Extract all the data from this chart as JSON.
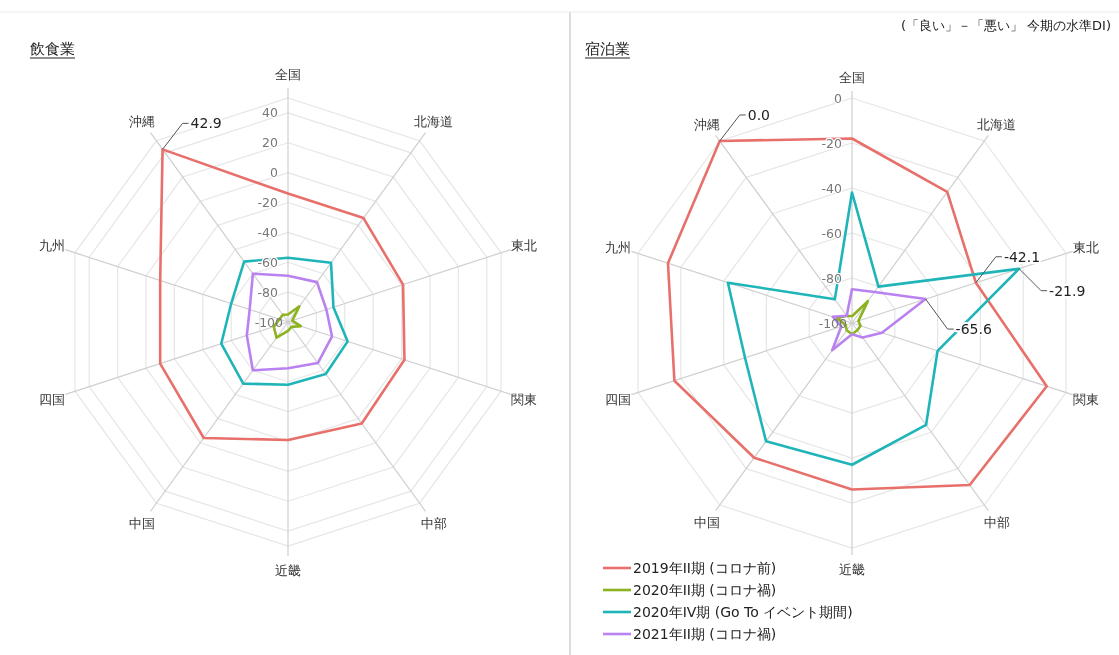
{
  "chart_data": [
    {
      "type": "radar",
      "title": "飲食業",
      "categories": [
        "全国",
        "北海道",
        "東北",
        "関東",
        "中部",
        "近畿",
        "中国",
        "四国",
        "九州",
        "沖縄"
      ],
      "ylim": [
        -100,
        50
      ],
      "yticks": [
        -100,
        -80,
        -60,
        -40,
        -20,
        0,
        20,
        40
      ],
      "grid": true,
      "series": [
        {
          "color": "#e8706b",
          "values": [
            -14,
            -14,
            -19,
            -18,
            -16,
            -21,
            -4,
            -10,
            -10,
            42.9
          ],
          "value_labels": [
            null,
            null,
            null,
            null,
            null,
            null,
            null,
            null,
            null,
            "42.9"
          ]
        },
        {
          "color": "#8cb31f",
          "values": [
            -95,
            -87,
            -97,
            -91,
            -96,
            -94,
            -87,
            -90,
            -94,
            -94
          ]
        },
        {
          "color": "#1fb5b8",
          "values": [
            -57,
            -51,
            -68,
            -58,
            -57,
            -58,
            -49,
            -53,
            -60,
            -50
          ]
        },
        {
          "color": "#b982f0",
          "values": [
            -69,
            -67,
            -73,
            -69,
            -66,
            -69,
            -60,
            -71,
            -73,
            -60
          ]
        }
      ]
    },
    {
      "type": "radar",
      "title": "宿泊業",
      "categories": [
        "全国",
        "北海道",
        "東北",
        "関東",
        "中部",
        "近畿",
        "中国",
        "四国",
        "九州",
        "沖縄"
      ],
      "ylim": [
        -100,
        0
      ],
      "yticks": [
        -100,
        -80,
        -60,
        -40,
        -20,
        0
      ],
      "grid": true,
      "legend": "bottom left",
      "annotations": [
        "(「良い」－「悪い」 今期の水準DI)"
      ],
      "series": [
        {
          "name": "2019年II期 (コロナ前)",
          "color": "#e8706b",
          "values": [
            -18,
            -28,
            -42.1,
            -9,
            -11,
            -26,
            -26,
            -17,
            -14,
            0.0
          ],
          "value_labels": [
            null,
            null,
            "-42.1",
            null,
            null,
            null,
            null,
            null,
            null,
            "0.0"
          ]
        },
        {
          "name": "2020年II期 (コロナ禍)",
          "color": "#8cb31f",
          "values": [
            -97,
            -88,
            -97,
            -96,
            -96,
            -95,
            -96,
            -97,
            -93,
            -96
          ]
        },
        {
          "name": "2020年IV期 (Go To イベント期間)",
          "color": "#1fb5b8",
          "values": [
            -42,
            -80,
            -21.9,
            -60,
            -44,
            -37,
            -35,
            -50,
            -42,
            -87
          ],
          "value_labels": [
            null,
            null,
            "-21.9",
            null,
            null,
            null,
            null,
            null,
            null,
            null
          ]
        },
        {
          "name": "2021年II期 (コロナ禍)",
          "color": "#b982f0",
          "values": [
            -85,
            -83,
            -65.6,
            -86,
            -92,
            -95,
            -85,
            -95,
            -91,
            -96
          ],
          "value_labels": [
            null,
            null,
            "-65.6",
            null,
            null,
            null,
            null,
            null,
            null,
            null
          ]
        }
      ]
    }
  ]
}
